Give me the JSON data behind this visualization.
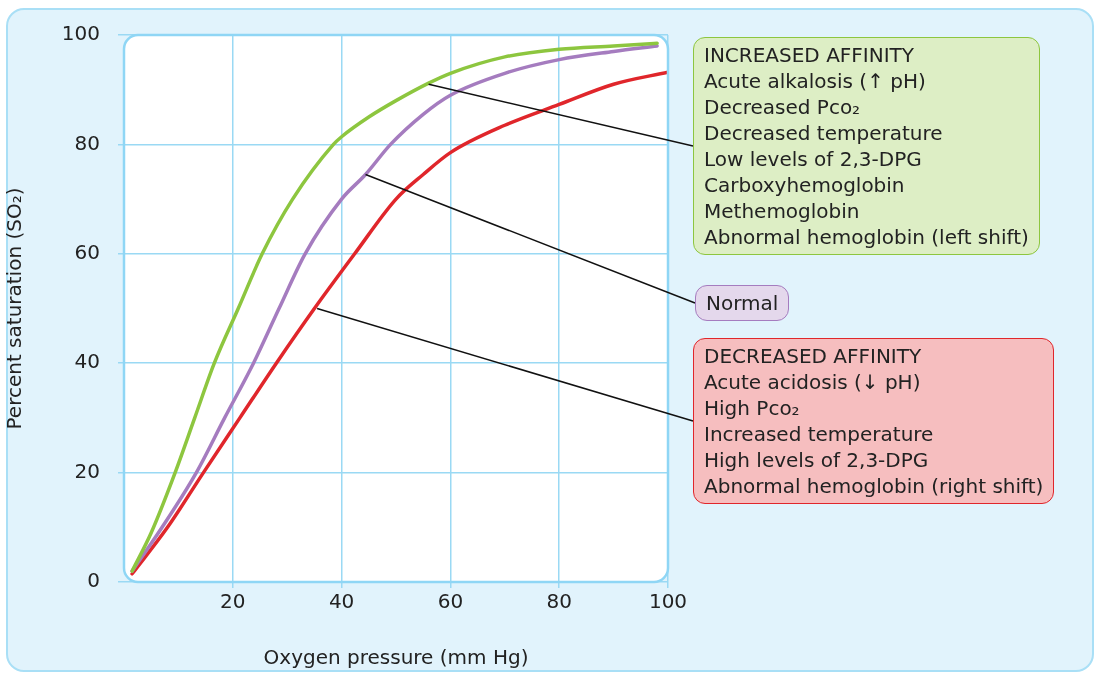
{
  "chart_data": {
    "type": "line",
    "xlabel": "Oxygen pressure (mm Hg)",
    "ylabel": "Percent saturation (SO₂)",
    "xlim": [
      0,
      100
    ],
    "xticks": [
      20,
      40,
      60,
      80,
      100
    ],
    "ylim": [
      0,
      100
    ],
    "yticks": [
      0,
      20,
      40,
      60,
      80,
      100
    ],
    "grid": true,
    "legend": false,
    "marker": "none",
    "line_style": "solid",
    "series": [
      {
        "color": "#8dc63f",
        "x": [
          1.5,
          5,
          9.4,
          13,
          16.6,
          21,
          25.4,
          31,
          38.5,
          40,
          45,
          50,
          56,
          60,
          70,
          80,
          90,
          98
        ],
        "values": [
          2,
          9,
          20,
          30,
          40,
          50,
          60,
          70,
          80,
          81.4,
          85,
          88,
          91.2,
          93,
          96,
          97.4,
          98,
          98.5
        ]
      },
      {
        "color": "#a57cbf",
        "x": [
          1.5,
          7,
          13.3,
          18.5,
          23.8,
          28.5,
          33.3,
          40,
          44.4,
          49,
          55,
          60,
          70,
          80,
          90,
          98
        ],
        "values": [
          2,
          10,
          20,
          30,
          40,
          50,
          60,
          70,
          74.5,
          80,
          85.5,
          89,
          93,
          95.5,
          97,
          98
        ]
      },
      {
        "color": "#e0262b",
        "x": [
          1.5,
          8,
          14.6,
          21.3,
          28,
          35,
          42.4,
          50,
          55,
          60,
          70,
          80,
          90,
          100
        ],
        "values": [
          1.5,
          10,
          20,
          30,
          40,
          50,
          60,
          70,
          74.5,
          78.5,
          83.5,
          87.3,
          91,
          93.2
        ]
      }
    ],
    "annotations": [
      {
        "text": "INCREASED AFFINITY\nAcute alkalosis (↑ pH)\nDecreased Pco₂\nDecreased temperature\nLow levels of 2,3-DPG\nCarboxyhemoglobin\nMethemoglobin\nAbnormal hemoglobin (left shift)",
        "x": 56,
        "y": 91
      },
      {
        "text": "Normal",
        "x": 44.4,
        "y": 74.5
      },
      {
        "text": "DECREASED AFFINITY\nAcute acidosis (↓ pH)\nHigh Pco₂\nIncreased temperature\nHigh levels of 2,3-DPG\nAbnormal hemoglobin (right shift)",
        "x": 35.5,
        "y": 50
      }
    ]
  }
}
